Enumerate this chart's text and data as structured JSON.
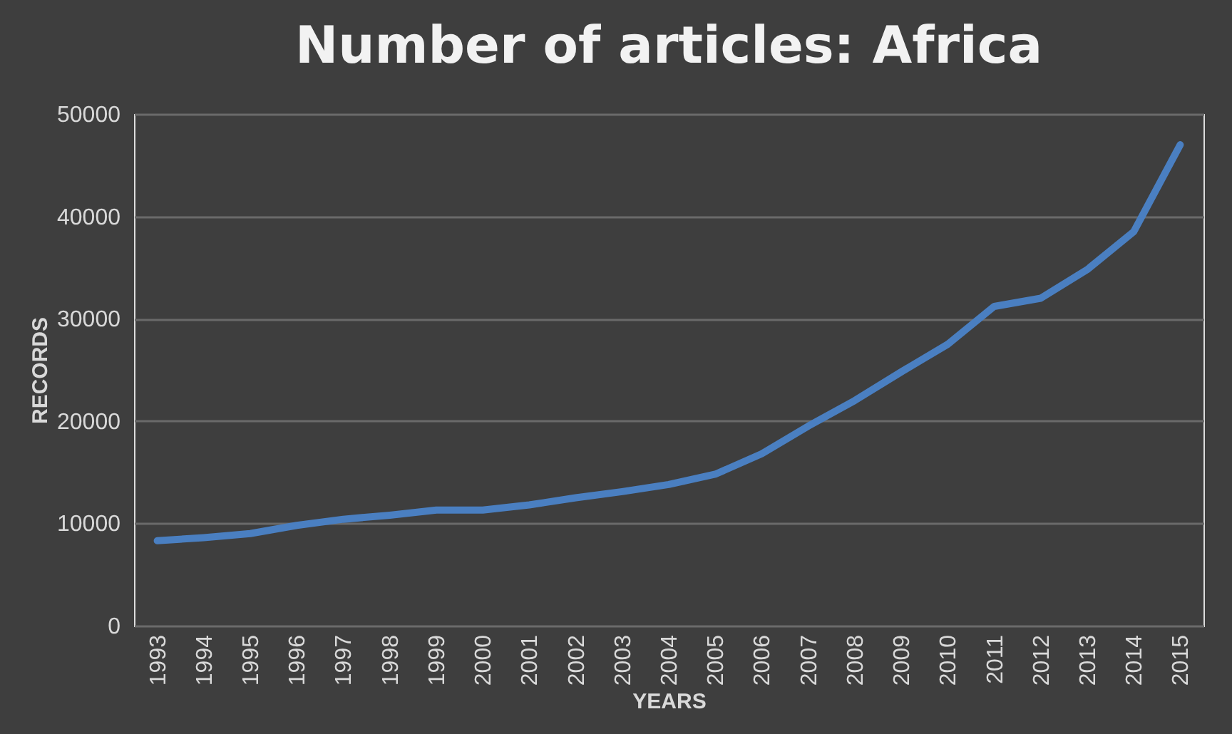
{
  "chart_data": {
    "type": "line",
    "title": "Number of articles: Africa",
    "xlabel": "YEARS",
    "ylabel": "RECORDS",
    "categories": [
      "1993",
      "1994",
      "1995",
      "1996",
      "1997",
      "1998",
      "1999",
      "2000",
      "2001",
      "2002",
      "2003",
      "2004",
      "2005",
      "2006",
      "2007",
      "2008",
      "2009",
      "2010",
      "2011",
      "2012",
      "2013",
      "2014",
      "2015"
    ],
    "series": [
      {
        "color": "#4a7fc1",
        "values": [
          8300,
          8600,
          9000,
          9800,
          10400,
          10800,
          11300,
          11300,
          11800,
          12500,
          13100,
          13800,
          14800,
          16800,
          19500,
          22000,
          24800,
          27500,
          31200,
          32000,
          34800,
          38500,
          47000
        ]
      }
    ],
    "ylim": [
      0,
      50000
    ],
    "yticks": [
      0,
      10000,
      20000,
      30000,
      40000,
      50000
    ],
    "grid": "y",
    "marker": "none",
    "line_style": "solid"
  }
}
